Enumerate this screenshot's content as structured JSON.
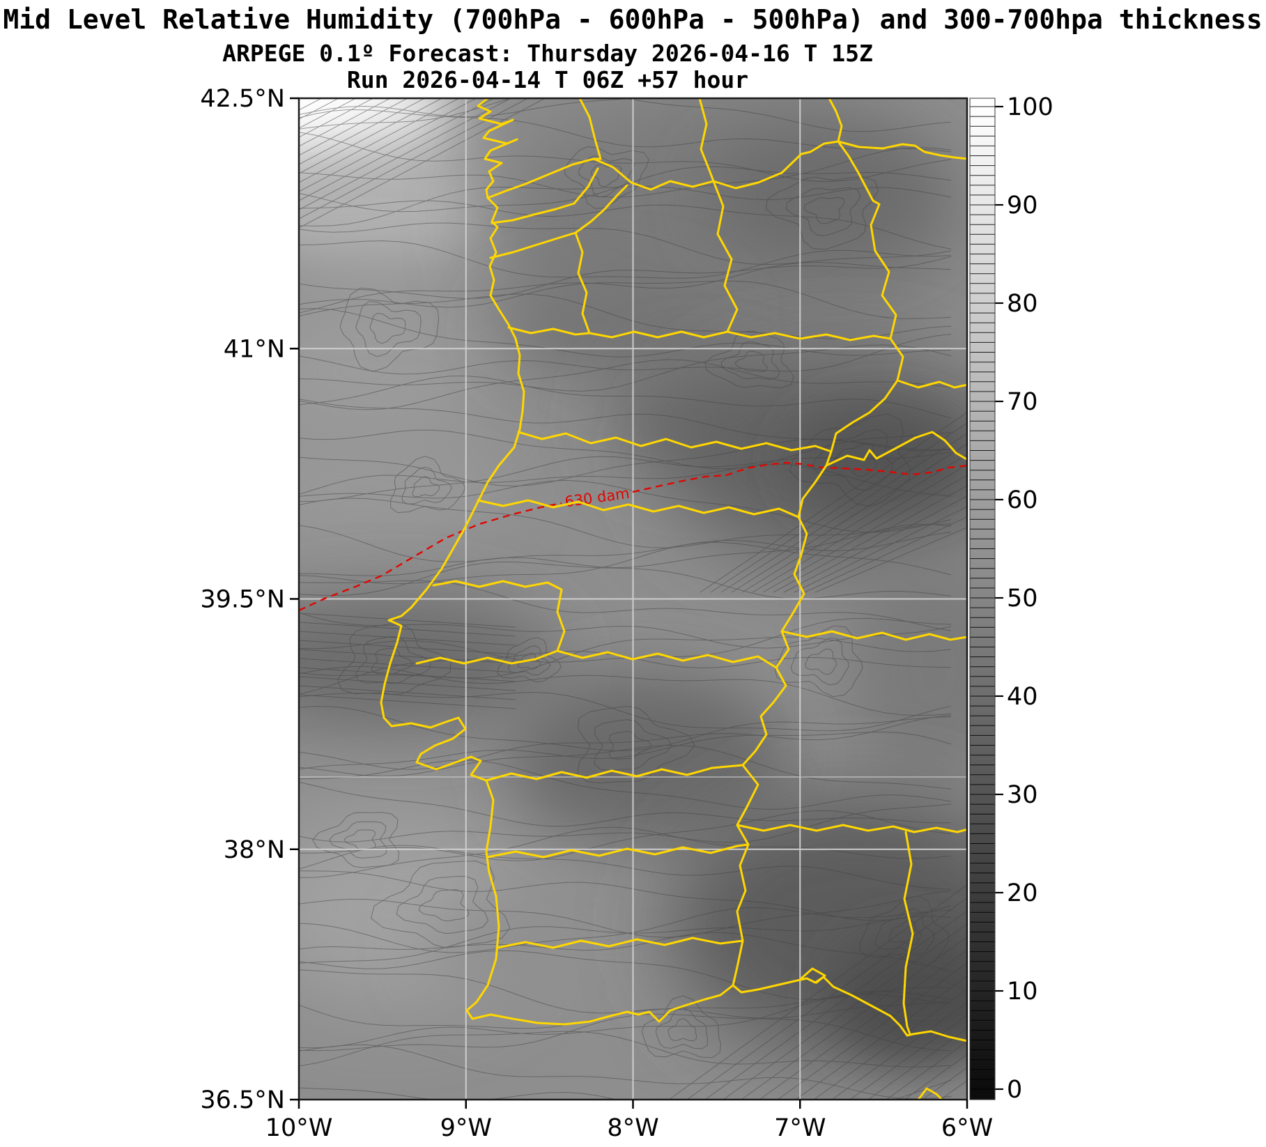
{
  "title": {
    "line1": "Mid Level Relative Humidity (700hPa - 600hPa - 500hPa) and 300-700hpa thickness",
    "line2": "ARPEGE 0.1º Forecast: Thursday 2026-04-16 T 15Z",
    "line3": "Run 2026-04-14 T 06Z +57 hour"
  },
  "chart_data": {
    "type": "heatmap",
    "subtype": "filled-contour-weather-map",
    "region": "Iberian Peninsula (Portugal and western Spain)",
    "field": "Mid Level Relative Humidity (700hPa - 600hPa - 500hPa)",
    "field_units": "%",
    "overlay_field": "300-700hpa thickness",
    "model": "ARPEGE 0.1º",
    "forecast_valid": "Thursday 2026-04-16 T 15Z",
    "model_run": "Run 2026-04-14 T 06Z",
    "forecast_hour": "+57 hour",
    "x_axis": {
      "ticks": [
        {
          "label": "10°W",
          "lon": -10
        },
        {
          "label": "9°W",
          "lon": -9
        },
        {
          "label": "8°W",
          "lon": -8
        },
        {
          "label": "7°W",
          "lon": -7
        },
        {
          "label": "6°W",
          "lon": -6
        }
      ],
      "range_lon": [
        -10,
        -6
      ],
      "grid": true
    },
    "y_axis": {
      "ticks": [
        {
          "label": "42.5°N",
          "lat": 42.5
        },
        {
          "label": "41°N",
          "lat": 41
        },
        {
          "label": "39.5°N",
          "lat": 39.5
        },
        {
          "label": "38°N",
          "lat": 38
        },
        {
          "label": "36.5°N",
          "lat": 36.5
        }
      ],
      "range_lat": [
        36.5,
        42.5
      ],
      "grid": true
    },
    "colorbar": {
      "min": 0,
      "max": 100,
      "major_ticks": [
        "100",
        "90",
        "80",
        "70",
        "60",
        "50",
        "40",
        "30",
        "20",
        "10",
        "0"
      ],
      "minor_tick_step": 1,
      "colormap": "grayscale (0 = black, 100 = white)",
      "position": "right"
    },
    "thickness_contours": [
      {
        "label": "630 dam",
        "value_dam": 630,
        "style": "dashed",
        "color": "#e10600"
      }
    ],
    "legend_position": "none"
  },
  "colors": {
    "admin_borders": "#ffd700",
    "thickness_line": "#e10600",
    "graticule": "#d4d4d4",
    "frame": "#1a1a1a",
    "ocean_land_base": "#8e8e8e",
    "contour_line": "#404040"
  }
}
